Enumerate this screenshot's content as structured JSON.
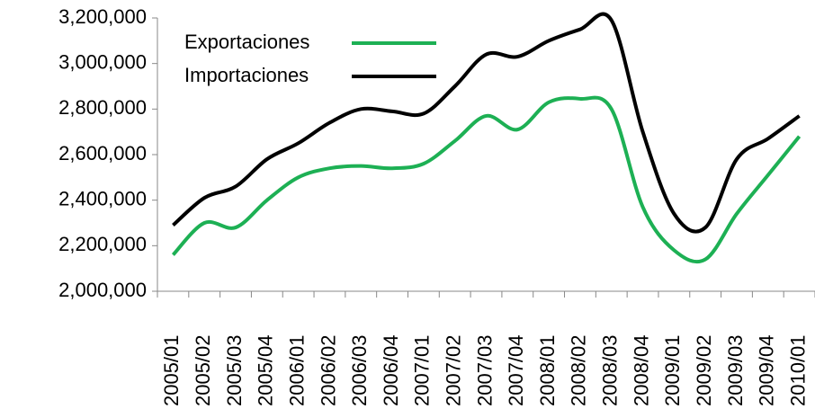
{
  "chart_data": {
    "type": "line",
    "categories": [
      "2005/01",
      "2005/02",
      "2005/03",
      "2005/04",
      "2006/01",
      "2006/02",
      "2006/03",
      "2006/04",
      "2007/01",
      "2007/02",
      "2007/03",
      "2007/04",
      "2008/01",
      "2008/02",
      "2008/03",
      "2008/04",
      "2009/01",
      "2009/02",
      "2009/03",
      "2009/04",
      "2010/01"
    ],
    "series": [
      {
        "name": "Exportaciones",
        "color": "#1db054",
        "values": [
          2160000,
          2300000,
          2280000,
          2400000,
          2500000,
          2540000,
          2550000,
          2540000,
          2560000,
          2660000,
          2770000,
          2710000,
          2830000,
          2845000,
          2800000,
          2370000,
          2180000,
          2140000,
          2340000,
          2510000,
          2680000
        ]
      },
      {
        "name": "Importaciones",
        "color": "#000000",
        "values": [
          2290000,
          2410000,
          2460000,
          2580000,
          2650000,
          2740000,
          2800000,
          2790000,
          2780000,
          2900000,
          3040000,
          3030000,
          3100000,
          3150000,
          3190000,
          2700000,
          2340000,
          2280000,
          2580000,
          2670000,
          2770000
        ]
      }
    ],
    "ylim": [
      2000000,
      3200000
    ],
    "yticks": [
      {
        "value": 2000000,
        "label": "2,000,000"
      },
      {
        "value": 2200000,
        "label": "2,200,000"
      },
      {
        "value": 2400000,
        "label": "2,400,000"
      },
      {
        "value": 2600000,
        "label": "2,600,000"
      },
      {
        "value": 2800000,
        "label": "2,800,000"
      },
      {
        "value": 3000000,
        "label": "3,000,000"
      },
      {
        "value": 3200000,
        "label": "3,200,000"
      }
    ],
    "legend": "upper left"
  }
}
